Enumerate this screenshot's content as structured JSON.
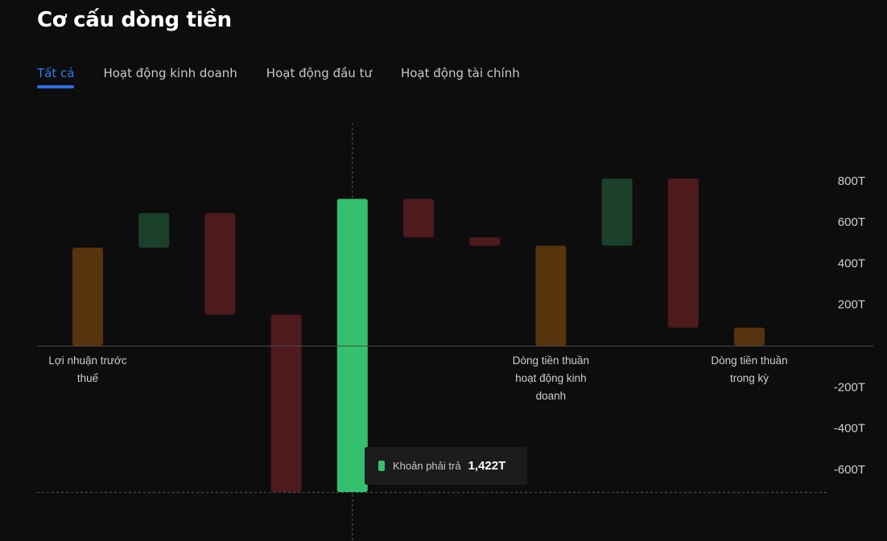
{
  "page": {
    "title": "Cơ cấu dòng tiền",
    "tabs": [
      {
        "label": "Tất cả",
        "active": true
      },
      {
        "label": "Hoạt động kinh doanh",
        "active": false
      },
      {
        "label": "Hoạt động đầu tư",
        "active": false
      },
      {
        "label": "Hoạt động tài chính",
        "active": false
      }
    ]
  },
  "tooltip": {
    "label": "Khoản phải trả",
    "value": "1,422T",
    "color": "#34c06e"
  },
  "colors": {
    "background": "#0d0d0d",
    "total": "#57330e",
    "increase": "#1b402b",
    "decrease": "#4e1a1e",
    "highlight": "#34c06e",
    "tab_active": "#2d7bf0",
    "axis_text": "#cfcfcf"
  },
  "chart_data": {
    "type": "waterfall",
    "title": "",
    "xlabel": "",
    "ylabel": "",
    "ylim": [
      -700,
      850
    ],
    "y_ticks": [
      800,
      600,
      400,
      200,
      -200,
      -400,
      -600
    ],
    "y_tick_labels": [
      "800T",
      "600T",
      "400T",
      "200T",
      "-200T",
      "-400T",
      "-600T"
    ],
    "grid": false,
    "highlighted_index": 4,
    "bars": [
      {
        "label": "Lợi nhuận trước thuế",
        "kind": "total",
        "low": 0,
        "high": 475
      },
      {
        "label": "",
        "kind": "increase",
        "low": 475,
        "high": 643
      },
      {
        "label": "",
        "kind": "decrease",
        "low": 150,
        "high": 643
      },
      {
        "label": "",
        "kind": "decrease",
        "low": -710,
        "high": 150
      },
      {
        "label": "Khoản phải trả",
        "kind": "increase",
        "low": -710,
        "high": 712
      },
      {
        "label": "",
        "kind": "decrease",
        "low": 525,
        "high": 712
      },
      {
        "label": "",
        "kind": "decrease",
        "low": 485,
        "high": 525
      },
      {
        "label": "Dòng tiền thuần hoạt động kinh doanh",
        "kind": "total",
        "low": 0,
        "high": 485
      },
      {
        "label": "",
        "kind": "increase",
        "low": 485,
        "high": 810
      },
      {
        "label": "",
        "kind": "decrease",
        "low": 87,
        "high": 810
      },
      {
        "label": "Dòng tiền thuần trong kỳ",
        "kind": "total",
        "low": 0,
        "high": 87
      }
    ],
    "category_labels": [
      {
        "bar_index": 0,
        "lines": [
          "Lợi nhuận trước",
          "thuế"
        ]
      },
      {
        "bar_index": 7,
        "lines": [
          "Dòng tiền thuần",
          "hoạt động kinh",
          "doanh"
        ]
      },
      {
        "bar_index": 10,
        "lines": [
          "Dòng tiền thuần",
          "trong kỳ"
        ]
      }
    ]
  }
}
